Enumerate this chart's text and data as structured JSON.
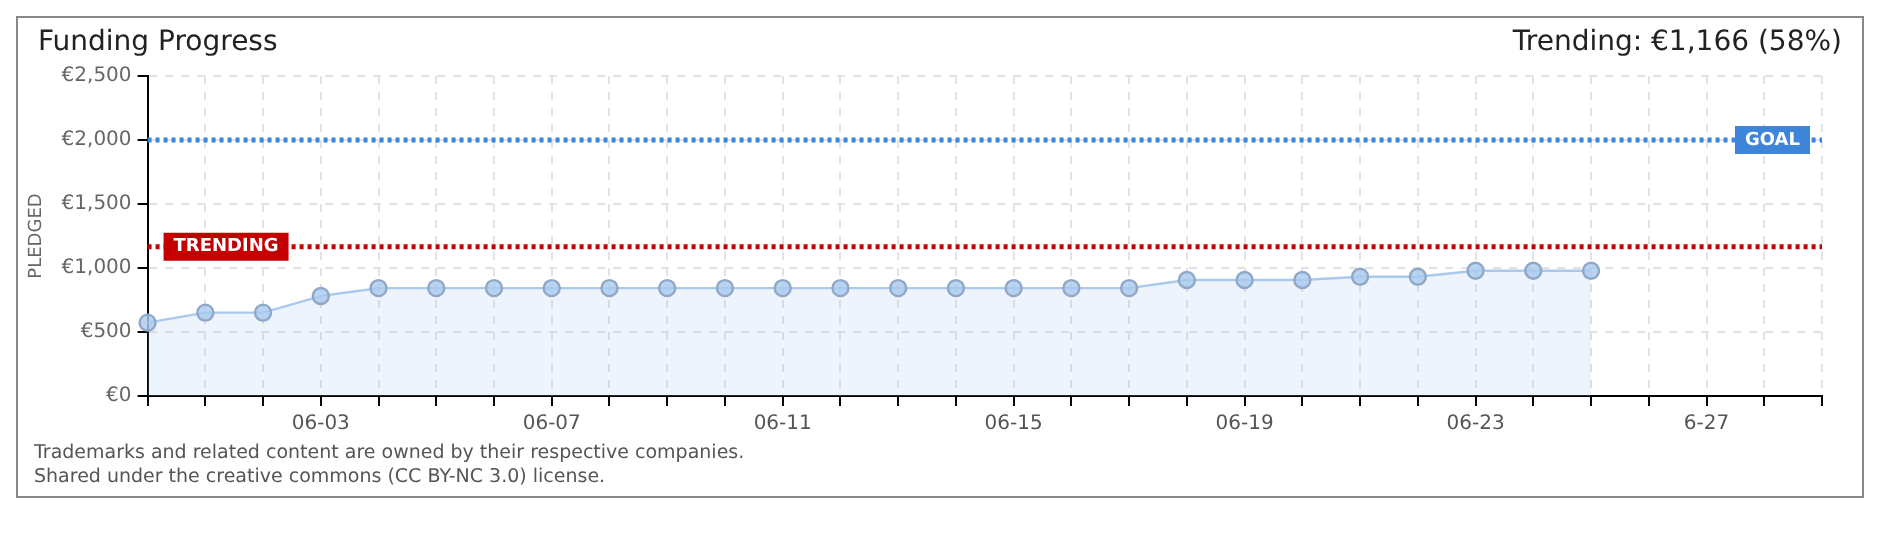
{
  "chart_data": {
    "type": "area",
    "title": "Funding Progress",
    "subtitle": "Trending:  €1,166 (58%)",
    "ylabel": "PLEDGED",
    "categories": [
      null,
      null,
      null,
      "06-03",
      null,
      null,
      null,
      "06-07",
      null,
      null,
      null,
      "06-11",
      null,
      null,
      null,
      "06-15",
      null,
      null,
      null,
      "06-19",
      null,
      null,
      null,
      "06-23",
      null,
      null,
      null,
      "6-27",
      null,
      null
    ],
    "series": [
      {
        "color": "#a9c9ee",
        "values": [
          573,
          651,
          651,
          781,
          843,
          843,
          843,
          843,
          843,
          843,
          843,
          843,
          843,
          843,
          843,
          843,
          843,
          843,
          906,
          906,
          906,
          932,
          932,
          979,
          979,
          979,
          null,
          null,
          null,
          null
        ]
      }
    ],
    "ylim": [
      0,
      2500
    ],
    "yticks": [
      {
        "value": 0,
        "label": "€0"
      },
      {
        "value": 500,
        "label": "€500"
      },
      {
        "value": 1000,
        "label": "€1,000"
      },
      {
        "value": 1500,
        "label": "€1,500"
      },
      {
        "value": 2000,
        "label": "€2,000"
      },
      {
        "value": 2500,
        "label": "€2,500"
      }
    ],
    "grid": true,
    "marker": "circle",
    "ref_lines": [
      {
        "axis": "y",
        "value": 2000,
        "label": "GOAL",
        "color": "#3d85d8",
        "line_style": "dotted"
      },
      {
        "axis": "y",
        "value": 1166,
        "label": "TRENDING",
        "color": "#c40000",
        "line_style": "dotted"
      }
    ],
    "annotations": [
      "Trademarks and related content are owned by their respective companies.",
      "Shared under the creative commons (CC BY-NC 3.0) license."
    ]
  }
}
